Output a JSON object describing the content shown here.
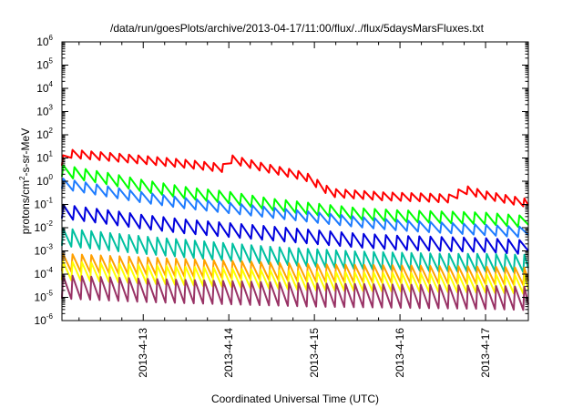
{
  "chart_data": {
    "type": "line",
    "title": "/data/run/goesPlots/archive/2013-04-17/11:00/flux/../flux/5daysMarsFluxes.txt",
    "xlabel": "Coordinated Universal Time (UTC)",
    "ylabel_parts": [
      "protons/cm",
      "2",
      "-s-sr-MeV"
    ],
    "y_scale": "log",
    "ylim_exp": [
      -6,
      6
    ],
    "y_ticks": [
      {
        "base": "10",
        "exp": "6"
      },
      {
        "base": "10",
        "exp": "5"
      },
      {
        "base": "10",
        "exp": "4"
      },
      {
        "base": "10",
        "exp": "3"
      },
      {
        "base": "10",
        "exp": "2"
      },
      {
        "base": "10",
        "exp": "1"
      },
      {
        "base": "10",
        "exp": "0"
      },
      {
        "base": "10",
        "exp": "-1"
      },
      {
        "base": "10",
        "exp": "-2"
      },
      {
        "base": "10",
        "exp": "-3"
      },
      {
        "base": "10",
        "exp": "-4"
      },
      {
        "base": "10",
        "exp": "-5"
      },
      {
        "base": "10",
        "exp": "-6"
      }
    ],
    "x_range_days": [
      12.05,
      17.5
    ],
    "x_ticks": [
      {
        "label": "2013-4-13",
        "day": 13
      },
      {
        "label": "2013-4-14",
        "day": 14
      },
      {
        "label": "2013-4-15",
        "day": 15
      },
      {
        "label": "2013-4-16",
        "day": 16
      },
      {
        "label": "2013-4-17",
        "day": 17
      }
    ],
    "grid": false,
    "legend": "none",
    "series": [
      {
        "color": "#ff0000",
        "period_days": 0.11,
        "amp_decades": 0.35,
        "anchors": [
          [
            12.05,
            0.85
          ],
          [
            12.1,
            1.2
          ],
          [
            12.6,
            1.05
          ],
          [
            13.0,
            0.92
          ],
          [
            13.5,
            0.75
          ],
          [
            13.97,
            0.55
          ],
          [
            14.03,
            0.95
          ],
          [
            14.4,
            0.6
          ],
          [
            14.9,
            0.2
          ],
          [
            15.2,
            -0.5
          ],
          [
            15.8,
            -0.65
          ],
          [
            16.3,
            -0.7
          ],
          [
            16.6,
            -0.75
          ],
          [
            16.75,
            -0.35
          ],
          [
            17.0,
            -0.6
          ],
          [
            17.5,
            -0.95
          ]
        ]
      },
      {
        "color": "#00ff00",
        "period_days": 0.13,
        "amp_decades": 0.5,
        "anchors": [
          [
            12.05,
            0.45
          ],
          [
            12.6,
            0.1
          ],
          [
            13.0,
            -0.2
          ],
          [
            13.5,
            -0.5
          ],
          [
            14.0,
            -0.7
          ],
          [
            14.5,
            -1.0
          ],
          [
            15.0,
            -1.2
          ],
          [
            15.5,
            -1.4
          ],
          [
            16.0,
            -1.5
          ],
          [
            16.5,
            -1.55
          ],
          [
            17.0,
            -1.6
          ],
          [
            17.5,
            -1.75
          ]
        ]
      },
      {
        "color": "#1e7cff",
        "period_days": 0.13,
        "amp_decades": 0.45,
        "anchors": [
          [
            12.05,
            -0.1
          ],
          [
            12.6,
            -0.45
          ],
          [
            13.0,
            -0.7
          ],
          [
            13.5,
            -0.95
          ],
          [
            14.0,
            -1.15
          ],
          [
            14.5,
            -1.35
          ],
          [
            15.0,
            -1.55
          ],
          [
            15.5,
            -1.75
          ],
          [
            16.0,
            -1.9
          ],
          [
            16.5,
            -2.0
          ],
          [
            17.0,
            -2.1
          ],
          [
            17.5,
            -2.2
          ]
        ]
      },
      {
        "color": "#0000dd",
        "period_days": 0.13,
        "amp_decades": 0.6,
        "anchors": [
          [
            12.05,
            -1.3
          ],
          [
            12.6,
            -1.55
          ],
          [
            13.0,
            -1.75
          ],
          [
            13.5,
            -1.95
          ],
          [
            14.0,
            -2.1
          ],
          [
            14.5,
            -2.25
          ],
          [
            15.0,
            -2.4
          ],
          [
            15.5,
            -2.55
          ],
          [
            16.0,
            -2.65
          ],
          [
            16.5,
            -2.7
          ],
          [
            17.0,
            -2.75
          ],
          [
            17.5,
            -2.85
          ]
        ]
      },
      {
        "color": "#00c0a0",
        "period_days": 0.11,
        "amp_decades": 0.75,
        "anchors": [
          [
            12.05,
            -2.4
          ],
          [
            12.6,
            -2.6
          ],
          [
            13.0,
            -2.75
          ],
          [
            13.5,
            -2.9
          ],
          [
            14.0,
            -3.05
          ],
          [
            14.5,
            -3.2
          ],
          [
            15.0,
            -3.3
          ],
          [
            15.5,
            -3.4
          ],
          [
            16.0,
            -3.45
          ],
          [
            16.5,
            -3.5
          ],
          [
            17.0,
            -3.5
          ],
          [
            17.5,
            -3.55
          ]
        ]
      },
      {
        "color": "#ffa000",
        "period_days": 0.11,
        "amp_decades": 0.75,
        "anchors": [
          [
            12.05,
            -3.5
          ],
          [
            13.0,
            -3.65
          ],
          [
            14.0,
            -3.8
          ],
          [
            15.0,
            -3.95
          ],
          [
            16.0,
            -4.0
          ],
          [
            17.0,
            -4.05
          ],
          [
            17.5,
            -4.1
          ]
        ]
      },
      {
        "color": "#ffff00",
        "period_days": 0.11,
        "amp_decades": 0.8,
        "anchors": [
          [
            12.05,
            -3.85
          ],
          [
            13.0,
            -4.0
          ],
          [
            14.0,
            -4.15
          ],
          [
            15.0,
            -4.3
          ],
          [
            16.0,
            -4.35
          ],
          [
            17.0,
            -4.4
          ],
          [
            17.5,
            -4.45
          ]
        ]
      },
      {
        "color": "#993366",
        "period_days": 0.11,
        "amp_decades": 1.0,
        "anchors": [
          [
            12.05,
            -4.55
          ],
          [
            13.0,
            -4.7
          ],
          [
            14.0,
            -4.8
          ],
          [
            15.0,
            -4.9
          ],
          [
            16.0,
            -4.95
          ],
          [
            17.0,
            -5.0
          ],
          [
            17.5,
            -5.05
          ]
        ]
      }
    ]
  }
}
